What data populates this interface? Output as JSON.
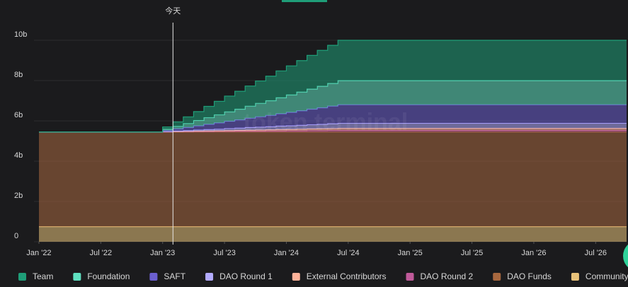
{
  "chart_data": {
    "type": "stacked_step_area",
    "watermark": "token terminal",
    "annotation": {
      "text": "今天",
      "x": "2023-02"
    },
    "x": [
      "2022-01",
      "2022-02",
      "2022-03",
      "2022-04",
      "2022-05",
      "2022-06",
      "2022-07",
      "2022-08",
      "2022-09",
      "2022-10",
      "2022-11",
      "2022-12",
      "2023-01",
      "2023-02",
      "2023-03",
      "2023-04",
      "2023-05",
      "2023-06",
      "2023-07",
      "2023-08",
      "2023-09",
      "2023-10",
      "2023-11",
      "2023-12",
      "2024-01",
      "2024-02",
      "2024-03",
      "2024-04",
      "2024-05",
      "2024-06",
      "2024-07",
      "2024-08",
      "2024-09",
      "2024-10",
      "2024-11",
      "2024-12",
      "2025-01",
      "2025-02",
      "2025-03",
      "2025-04",
      "2025-05",
      "2025-06",
      "2025-07",
      "2025-08",
      "2025-09",
      "2025-10",
      "2025-11",
      "2025-12",
      "2026-01",
      "2026-02",
      "2026-03",
      "2026-04",
      "2026-05",
      "2026-06",
      "2026-07",
      "2026-08",
      "2026-09",
      "2026-10"
    ],
    "xlim": [
      "2022-01",
      "2026-10"
    ],
    "xticks": [
      {
        "value": "2022-01",
        "label": "Jan '22"
      },
      {
        "value": "2022-07",
        "label": "Jul '22"
      },
      {
        "value": "2023-01",
        "label": "Jan '23"
      },
      {
        "value": "2023-07",
        "label": "Jul '23"
      },
      {
        "value": "2024-01",
        "label": "Jan '24"
      },
      {
        "value": "2024-07",
        "label": "Jul '24"
      },
      {
        "value": "2025-01",
        "label": "Jan '25"
      },
      {
        "value": "2025-07",
        "label": "Jul '25"
      },
      {
        "value": "2026-01",
        "label": "Jan '26"
      },
      {
        "value": "2026-07",
        "label": "Jul '26"
      }
    ],
    "ylim": [
      0,
      10
    ],
    "yticks": [
      0,
      {
        "value": 2,
        "label": "2b"
      },
      {
        "value": 4,
        "label": "4b"
      },
      {
        "value": 6,
        "label": "6b"
      },
      {
        "value": 8,
        "label": "8b"
      },
      {
        "value": 10,
        "label": "10b"
      }
    ],
    "grid": true,
    "legend": "bottom",
    "series": [
      {
        "name": "Community",
        "color": "#e8c27a",
        "values": [
          0.75,
          0.75,
          0.75,
          0.75,
          0.75,
          0.75,
          0.75,
          0.75,
          0.75,
          0.75,
          0.75,
          0.75,
          0.75,
          0.75,
          0.75,
          0.75,
          0.75,
          0.75,
          0.75,
          0.75,
          0.75,
          0.75,
          0.75,
          0.75,
          0.75,
          0.75,
          0.75,
          0.75,
          0.75,
          0.75,
          0.75,
          0.75,
          0.75,
          0.75,
          0.75,
          0.75,
          0.75,
          0.75,
          0.75,
          0.75,
          0.75,
          0.75,
          0.75,
          0.75,
          0.75,
          0.75,
          0.75,
          0.75,
          0.75,
          0.75,
          0.75,
          0.75,
          0.75,
          0.75,
          0.75,
          0.75,
          0.75,
          0.75
        ]
      },
      {
        "name": "DAO Funds",
        "color": "#a8683f",
        "values": [
          4.7,
          4.7,
          4.7,
          4.7,
          4.7,
          4.7,
          4.7,
          4.7,
          4.7,
          4.7,
          4.7,
          4.7,
          4.7,
          4.7,
          4.7,
          4.7,
          4.7,
          4.7,
          4.7,
          4.7,
          4.7,
          4.7,
          4.7,
          4.7,
          4.7,
          4.7,
          4.7,
          4.7,
          4.7,
          4.7,
          4.7,
          4.7,
          4.7,
          4.7,
          4.7,
          4.7,
          4.7,
          4.7,
          4.7,
          4.7,
          4.7,
          4.7,
          4.7,
          4.7,
          4.7,
          4.7,
          4.7,
          4.7,
          4.7,
          4.7,
          4.7,
          4.7,
          4.7,
          4.7,
          4.7,
          4.7,
          4.7,
          4.7
        ]
      },
      {
        "name": "DAO Round 2",
        "color": "#c05a9a",
        "values": [
          0,
          0,
          0,
          0,
          0,
          0,
          0,
          0,
          0,
          0,
          0,
          0,
          0,
          0.01,
          0.01,
          0.02,
          0.02,
          0.03,
          0.03,
          0.04,
          0.04,
          0.04,
          0.05,
          0.05,
          0.06,
          0.06,
          0.07,
          0.07,
          0.08,
          0.08,
          0.08,
          0.08,
          0.08,
          0.08,
          0.08,
          0.08,
          0.08,
          0.08,
          0.08,
          0.08,
          0.08,
          0.08,
          0.08,
          0.08,
          0.08,
          0.08,
          0.08,
          0.08,
          0.08,
          0.08,
          0.08,
          0.08,
          0.08,
          0.08,
          0.08,
          0.08,
          0.08,
          0.08
        ]
      },
      {
        "name": "External Contributors",
        "color": "#ffb39a",
        "values": [
          0,
          0,
          0,
          0,
          0,
          0,
          0,
          0,
          0,
          0,
          0,
          0,
          0.01,
          0.01,
          0.02,
          0.02,
          0.03,
          0.03,
          0.04,
          0.04,
          0.05,
          0.06,
          0.06,
          0.07,
          0.07,
          0.08,
          0.08,
          0.09,
          0.09,
          0.1,
          0.1,
          0.1,
          0.1,
          0.1,
          0.1,
          0.1,
          0.1,
          0.1,
          0.1,
          0.1,
          0.1,
          0.1,
          0.1,
          0.1,
          0.1,
          0.1,
          0.1,
          0.1,
          0.1,
          0.1,
          0.1,
          0.1,
          0.1,
          0.1,
          0.1,
          0.1,
          0.1,
          0.1
        ]
      },
      {
        "name": "DAO Round 1",
        "color": "#b3abff",
        "values": [
          0,
          0,
          0,
          0,
          0,
          0,
          0,
          0,
          0,
          0,
          0,
          0,
          0.01,
          0.03,
          0.04,
          0.06,
          0.07,
          0.08,
          0.1,
          0.11,
          0.13,
          0.14,
          0.15,
          0.17,
          0.18,
          0.19,
          0.21,
          0.22,
          0.24,
          0.25,
          0.25,
          0.25,
          0.25,
          0.25,
          0.25,
          0.25,
          0.25,
          0.25,
          0.25,
          0.25,
          0.25,
          0.25,
          0.25,
          0.25,
          0.25,
          0.25,
          0.25,
          0.25,
          0.25,
          0.25,
          0.25,
          0.25,
          0.25,
          0.25,
          0.25,
          0.25,
          0.25,
          0.25
        ]
      },
      {
        "name": "SAFT",
        "color": "#6b5fd0",
        "values": [
          0,
          0,
          0,
          0,
          0,
          0,
          0,
          0,
          0,
          0,
          0,
          0,
          0.05,
          0.1,
          0.15,
          0.2,
          0.26,
          0.31,
          0.36,
          0.41,
          0.46,
          0.51,
          0.56,
          0.61,
          0.66,
          0.72,
          0.77,
          0.82,
          0.87,
          0.92,
          0.92,
          0.92,
          0.92,
          0.92,
          0.92,
          0.92,
          0.92,
          0.92,
          0.92,
          0.92,
          0.92,
          0.92,
          0.92,
          0.92,
          0.92,
          0.92,
          0.92,
          0.92,
          0.92,
          0.92,
          0.92,
          0.92,
          0.92,
          0.92,
          0.92,
          0.92,
          0.92,
          0.92
        ]
      },
      {
        "name": "Foundation",
        "color": "#5fe0c0",
        "values": [
          0,
          0,
          0,
          0,
          0,
          0,
          0,
          0,
          0,
          0,
          0,
          0,
          0.07,
          0.13,
          0.2,
          0.27,
          0.33,
          0.4,
          0.47,
          0.53,
          0.6,
          0.67,
          0.73,
          0.8,
          0.87,
          0.93,
          1.0,
          1.07,
          1.13,
          1.2,
          1.2,
          1.2,
          1.2,
          1.2,
          1.2,
          1.2,
          1.2,
          1.2,
          1.2,
          1.2,
          1.2,
          1.2,
          1.2,
          1.2,
          1.2,
          1.2,
          1.2,
          1.2,
          1.2,
          1.2,
          1.2,
          1.2,
          1.2,
          1.2,
          1.2,
          1.2,
          1.2,
          1.2
        ]
      },
      {
        "name": "Team",
        "color": "#1f9e78",
        "values": [
          0,
          0,
          0,
          0,
          0,
          0,
          0,
          0,
          0,
          0,
          0,
          0,
          0.11,
          0.22,
          0.33,
          0.44,
          0.56,
          0.67,
          0.78,
          0.89,
          1.0,
          1.11,
          1.22,
          1.33,
          1.44,
          1.56,
          1.67,
          1.78,
          1.89,
          2.0,
          2.0,
          2.0,
          2.0,
          2.0,
          2.0,
          2.0,
          2.0,
          2.0,
          2.0,
          2.0,
          2.0,
          2.0,
          2.0,
          2.0,
          2.0,
          2.0,
          2.0,
          2.0,
          2.0,
          2.0,
          2.0,
          2.0,
          2.0,
          2.0,
          2.0,
          2.0,
          2.0,
          2.0
        ]
      }
    ]
  }
}
